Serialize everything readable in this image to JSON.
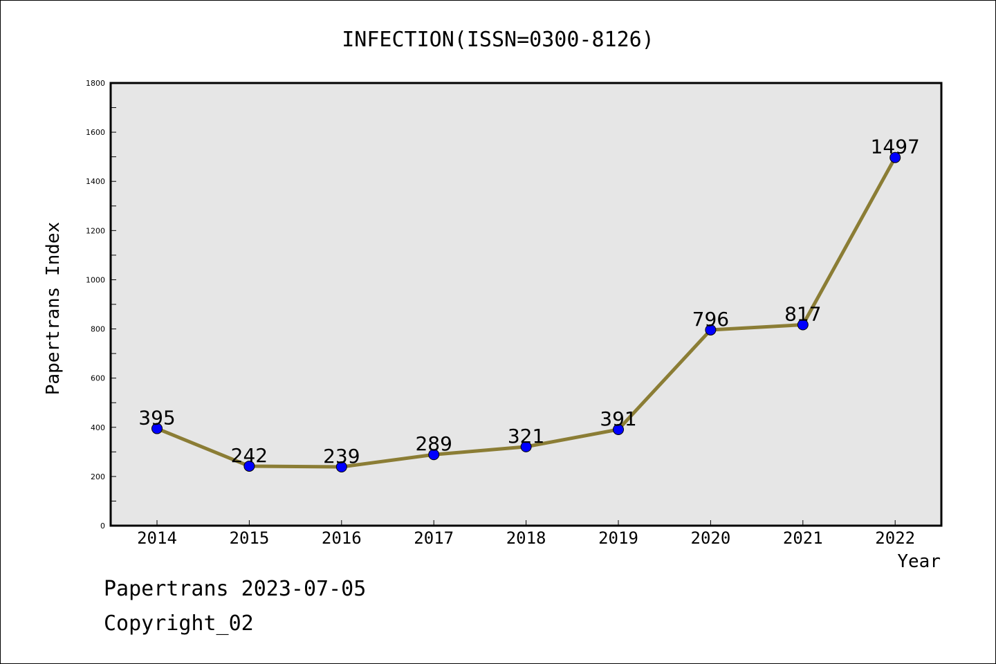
{
  "chart_data": {
    "type": "line",
    "title": "INFECTION(ISSN=0300-8126)",
    "xlabel": "Year",
    "ylabel": "Papertrans Index",
    "categories": [
      "2014",
      "2015",
      "2016",
      "2017",
      "2018",
      "2019",
      "2020",
      "2021",
      "2022"
    ],
    "series": [
      {
        "values": [
          395,
          242,
          239,
          289,
          321,
          391,
          796,
          817,
          1497
        ]
      }
    ],
    "data_labels": [
      "395",
      "242",
      "239",
      "289",
      "321",
      "391",
      "796",
      "817",
      "1497"
    ],
    "ylim": [
      0,
      1800
    ],
    "yticks": [
      "0",
      "200",
      "400",
      "600",
      "800",
      "1000",
      "1200",
      "1400",
      "1600",
      "1800"
    ],
    "grid": false,
    "colors": {
      "line": "#8B7D35",
      "marker": "#0000FF",
      "plot_background": "#E6E6E6"
    }
  },
  "footer": {
    "line1": "Papertrans 2023-07-05",
    "line2": "Copyright_02"
  }
}
